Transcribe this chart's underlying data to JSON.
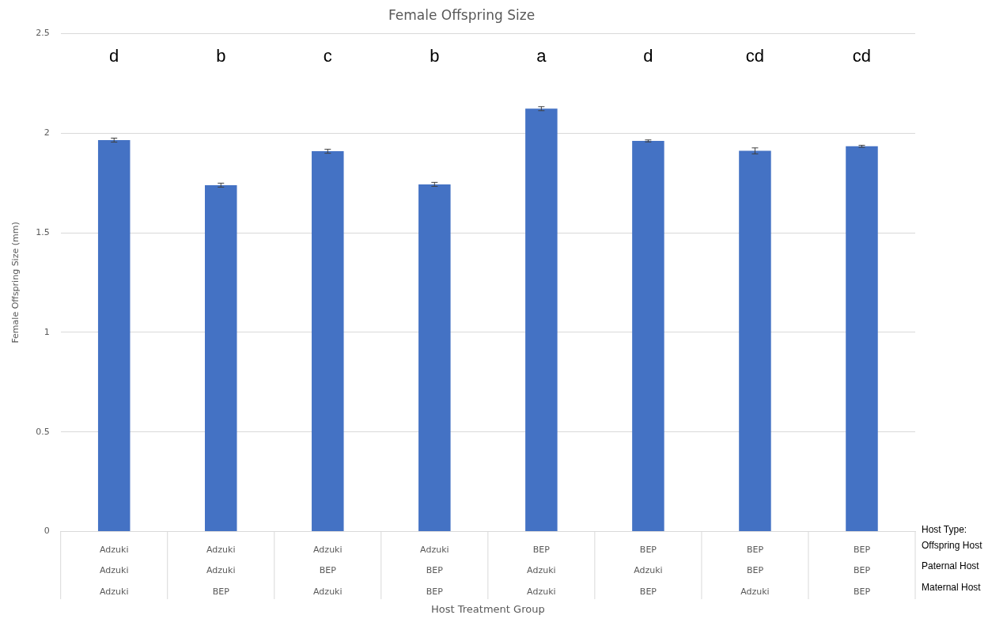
{
  "chart_data": {
    "type": "bar",
    "title": "Female Offspring Size",
    "ylabel": "Female Offspring Size (mm)",
    "categories": [
      "Adzuki\nAdzuki\nAdzuki",
      "Adzuki\nAdzuki\nBEP",
      "Adzuki\nBEP\nAdzuki",
      "Adzuki\nBEP\nBEP",
      "BEP\nAdzuki\nAdzuki",
      "BEP\nAdzuki\nBEP",
      "BEP\nBEP\nAdzuki",
      "BEP\nBEP\nBEP"
    ],
    "values": [
      1.965,
      1.739,
      1.909,
      1.743,
      2.123,
      1.961,
      1.911,
      1.934
    ],
    "errors": [
      0.01,
      0.01,
      0.01,
      0.01,
      0.01,
      0.005,
      0.015,
      0.005
    ],
    "color": "#4472c4",
    "ylim": [
      0,
      2.5
    ],
    "yticks": [
      0,
      0.5,
      1,
      1.5,
      2,
      2.5
    ],
    "grid": "y",
    "annotations": [
      "d",
      "b",
      "c",
      "b",
      "a",
      "d",
      "cd",
      "cd",
      "Host Type:",
      "Offspring Host",
      "Paternal Host",
      "Maternal Host",
      "Host Treatment Group"
    ]
  }
}
